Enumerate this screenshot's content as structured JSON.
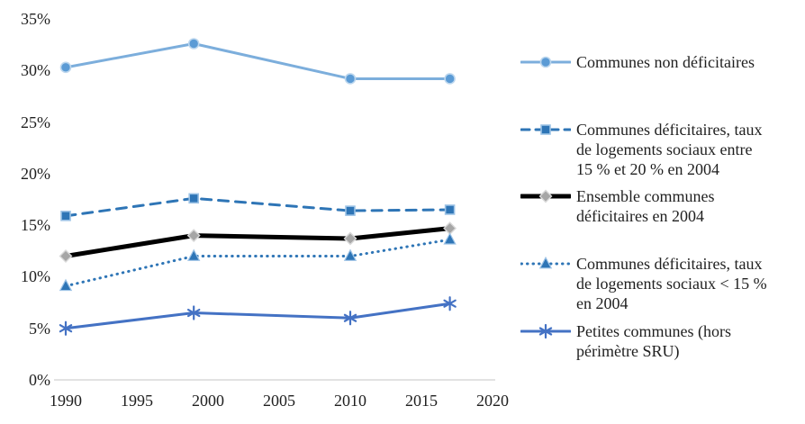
{
  "chart_data": {
    "type": "line",
    "title": "",
    "xlabel": "",
    "ylabel": "",
    "x": [
      1990,
      1999,
      2010,
      2017
    ],
    "series": [
      {
        "name": "Communes non déficitaires",
        "values": [
          30.3,
          32.6,
          29.2,
          29.2
        ],
        "color": "#7CAEDC",
        "marker": "circle",
        "marker_color": "#5B9BD5",
        "marker_halo": "#BDD7EE",
        "line_style": "solid",
        "line_width": 3
      },
      {
        "name": "Communes déficitaires, taux de logements sociaux entre 15 % et 20 % en 2004",
        "values": [
          15.9,
          17.6,
          16.4,
          16.5
        ],
        "color": "#2E75B6",
        "marker": "square",
        "marker_color": "#2E75B6",
        "marker_halo": "#9DC3E6",
        "line_style": "dashed",
        "line_width": 3
      },
      {
        "name": "Ensemble communes déficitaires en 2004",
        "values": [
          12.0,
          14.0,
          13.7,
          14.7
        ],
        "color": "#000000",
        "marker": "diamond",
        "marker_color": "#A6A6A6",
        "marker_halo": "#D9D9D9",
        "line_style": "solid",
        "line_width": 5
      },
      {
        "name": "Communes déficitaires, taux de logements sociaux < 15 % en 2004",
        "values": [
          9.1,
          12.0,
          12.0,
          13.6
        ],
        "color": "#2E75B6",
        "marker": "triangle",
        "marker_color": "#2E75B6",
        "marker_halo": "#9DC3E6",
        "line_style": "dotted",
        "line_width": 3
      },
      {
        "name": "Petites communes (hors périmètre SRU)",
        "values": [
          5.0,
          6.5,
          6.0,
          7.4
        ],
        "color": "#4472C4",
        "marker": "asterisk",
        "marker_color": "#4472C4",
        "marker_halo": "none",
        "line_style": "solid",
        "line_width": 3
      }
    ],
    "xlim": [
      1990,
      2020
    ],
    "ylim": [
      0,
      35
    ],
    "x_ticks": [
      "1990",
      "1995",
      "2000",
      "2005",
      "2010",
      "2015",
      "2020"
    ],
    "y_ticks": [
      "0%",
      "5%",
      "10%",
      "15%",
      "20%",
      "25%",
      "30%",
      "35%"
    ],
    "grid": false,
    "legend_position": "right",
    "axis_line_color": "#D9D9D9"
  },
  "legend": {
    "items": [
      {
        "label": "Communes non déficitaires"
      },
      {
        "label": "Communes déficitaires, taux\nde logements sociaux entre\n15 % et 20 % en 2004"
      },
      {
        "label": "Ensemble communes\ndéficitaires en 2004"
      },
      {
        "label": "Communes déficitaires, taux\nde logements sociaux < 15 %\nen 2004"
      },
      {
        "label": "Petites communes (hors\npérimètre SRU)"
      }
    ]
  }
}
